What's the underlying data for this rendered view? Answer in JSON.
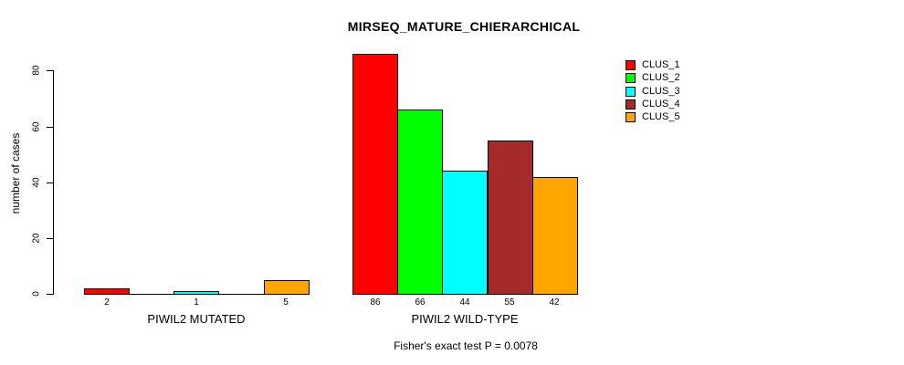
{
  "page": {
    "background": "#FFFFFF",
    "text_color": "#000000"
  },
  "chart_data": {
    "type": "bar",
    "title": "MIRSEQ_MATURE_CHIERARCHICAL",
    "ylabel": "number of cases",
    "xlabel": "",
    "yticks": [
      0,
      20,
      40,
      60,
      80
    ],
    "ylim": [
      0,
      86
    ],
    "grid": false,
    "legend_position": "top-right",
    "categories": [
      "PIWIL2 MUTATED",
      "PIWIL2 WILD-TYPE"
    ],
    "series": [
      {
        "name": "CLUS_1",
        "color": "#FF0000",
        "values": [
          2,
          86
        ]
      },
      {
        "name": "CLUS_2",
        "color": "#00FF00",
        "values": [
          0,
          66
        ]
      },
      {
        "name": "CLUS_3",
        "color": "#00FFFF",
        "values": [
          1,
          44
        ]
      },
      {
        "name": "CLUS_4",
        "color": "#A52A2A",
        "values": [
          0,
          55
        ]
      },
      {
        "name": "CLUS_5",
        "color": "#FFA500",
        "values": [
          5,
          42
        ]
      }
    ],
    "value_labels_note": "bar count labels shown under each nonzero bar",
    "annotation": "Fisher's exact test P = 0.0078"
  }
}
